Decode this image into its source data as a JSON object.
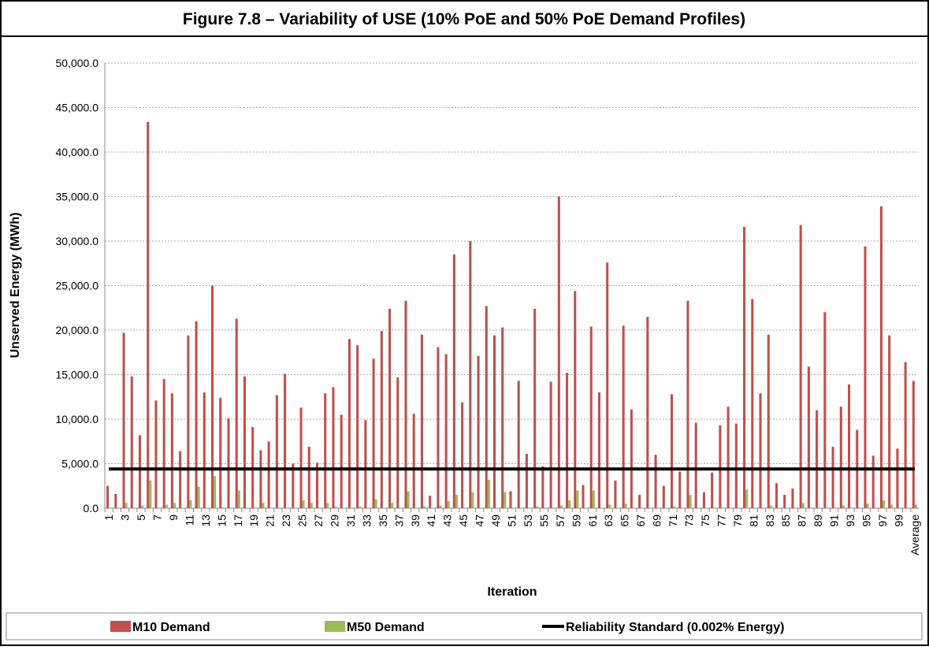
{
  "chart_data": {
    "type": "bar",
    "title": "Figure 7.8 – Variability of USE (10% PoE and 50% PoE Demand Profiles)",
    "ylabel": "Unserved Energy (MWh)",
    "xlabel": "Iteration",
    "categories": [
      "1",
      null,
      "3",
      null,
      "5",
      null,
      "7",
      null,
      "9",
      null,
      "11",
      null,
      "13",
      null,
      "15",
      null,
      "17",
      null,
      "19",
      null,
      "21",
      null,
      "23",
      null,
      "25",
      null,
      "27",
      null,
      "29",
      null,
      "31",
      null,
      "33",
      null,
      "35",
      null,
      "37",
      null,
      "39",
      null,
      "41",
      null,
      "43",
      null,
      "45",
      null,
      "47",
      null,
      "49",
      null,
      "51",
      null,
      "53",
      null,
      "55",
      null,
      "57",
      null,
      "59",
      null,
      "61",
      null,
      "63",
      null,
      "65",
      null,
      "67",
      null,
      "69",
      null,
      "71",
      null,
      "73",
      null,
      "75",
      null,
      "77",
      null,
      "79",
      null,
      "81",
      null,
      "83",
      null,
      "85",
      null,
      "87",
      null,
      "89",
      null,
      "91",
      null,
      "93",
      null,
      "95",
      null,
      "97",
      null,
      "99",
      null,
      "Average"
    ],
    "series": [
      {
        "name": "M10 Demand",
        "color": "#c0504d",
        "values": [
          2500,
          1600,
          19700,
          14800,
          8200,
          43400,
          12100,
          14500,
          12900,
          6400,
          19400,
          21000,
          13000,
          25000,
          12400,
          10100,
          21300,
          14800,
          9100,
          6500,
          7500,
          12700,
          15100,
          5000,
          11300,
          6900,
          5100,
          12900,
          13600,
          10500,
          19000,
          18300,
          9900,
          16800,
          19900,
          22400,
          14700,
          23300,
          10600,
          19500,
          1400,
          18100,
          17300,
          28500,
          11900,
          30000,
          17100,
          22700,
          19400,
          20300,
          1900,
          14300,
          6100,
          22400,
          4700,
          14200,
          35000,
          15200,
          24400,
          2600,
          20400,
          13000,
          27600,
          3100,
          20500,
          11100,
          1500,
          21500,
          6000,
          2500,
          12800,
          4100,
          23300,
          9600,
          1800,
          4000,
          9300,
          11400,
          9500,
          31600,
          23500,
          12900,
          19500,
          2800,
          1500,
          2200,
          31800,
          15900,
          11000,
          22000,
          6900,
          11400,
          13900,
          8800,
          29400,
          5900,
          33900,
          19400,
          6700,
          16400,
          14300
        ]
      },
      {
        "name": "M50 Demand",
        "color": "#9bbb59",
        "values": [
          0,
          0,
          600,
          0,
          300,
          3100,
          0,
          400,
          600,
          0,
          900,
          2400,
          0,
          3600,
          100,
          0,
          2000,
          0,
          0,
          600,
          0,
          0,
          0,
          0,
          900,
          600,
          0,
          600,
          200,
          0,
          0,
          200,
          0,
          1000,
          0,
          600,
          0,
          1900,
          0,
          200,
          0,
          300,
          800,
          1500,
          0,
          1800,
          0,
          3200,
          0,
          1800,
          0,
          0,
          0,
          200,
          0,
          0,
          300,
          900,
          2000,
          0,
          2000,
          0,
          400,
          0,
          500,
          0,
          0,
          0,
          0,
          0,
          200,
          0,
          1500,
          0,
          0,
          0,
          0,
          0,
          0,
          2100,
          0,
          0,
          300,
          0,
          0,
          0,
          600,
          0,
          0,
          0,
          0,
          300,
          0,
          0,
          500,
          0,
          900,
          400,
          0,
          0,
          400
        ]
      }
    ],
    "reference_line": {
      "name": "Reliability Standard (0.002% Energy)",
      "value": 4400,
      "color": "#000000"
    },
    "ylim": [
      0,
      50000
    ],
    "yticks": [
      {
        "value": 0,
        "label": "0.0"
      },
      {
        "value": 5000,
        "label": "5,000.0"
      },
      {
        "value": 10000,
        "label": "10,000.0"
      },
      {
        "value": 15000,
        "label": "15,000.0"
      },
      {
        "value": 20000,
        "label": "20,000.0"
      },
      {
        "value": 25000,
        "label": "25,000.0"
      },
      {
        "value": 30000,
        "label": "30,000.0"
      },
      {
        "value": 35000,
        "label": "35,000.0"
      },
      {
        "value": 40000,
        "label": "40,000.0"
      },
      {
        "value": 45000,
        "label": "45,000.0"
      },
      {
        "value": 50000,
        "label": "50,000.0"
      }
    ],
    "grid": true
  }
}
